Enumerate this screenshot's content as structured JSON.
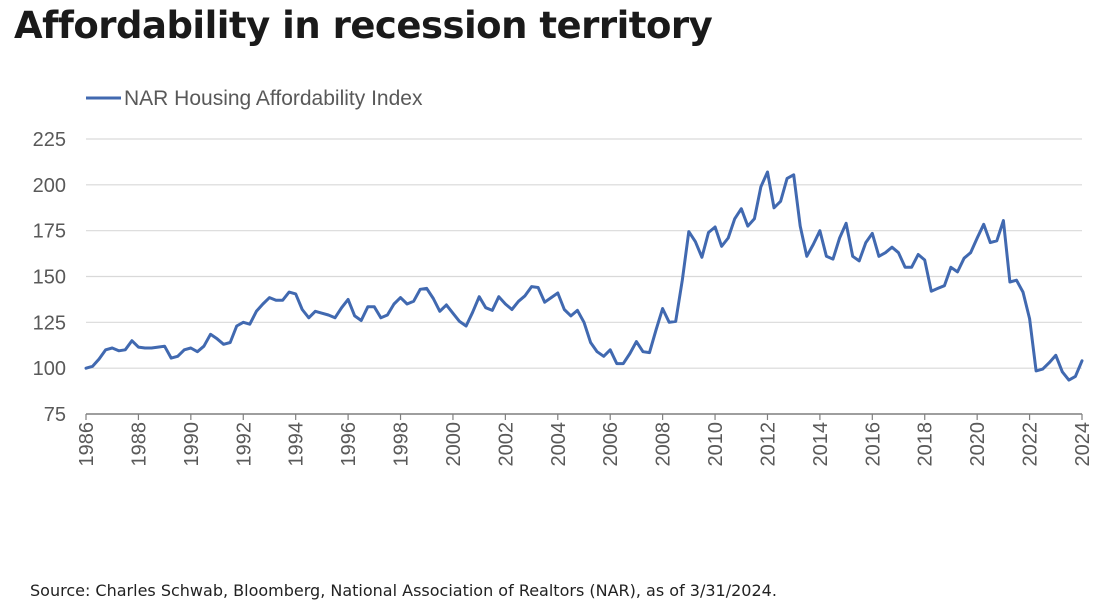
{
  "page": {
    "title": "Affordability in recession territory",
    "source": "Source: Charles Schwab, Bloomberg, National Association of Realtors (NAR), as of 3/31/2024."
  },
  "colors": {
    "series": "#4169b0",
    "grid": "#d9d9d9",
    "axis": "#7f7f7f",
    "text": "#595959"
  },
  "chart_data": {
    "type": "line",
    "title": "Affordability in recession territory",
    "legend": {
      "position": "top-left",
      "entries": [
        "NAR Housing Affordability Index"
      ]
    },
    "xlim": [
      1986,
      2024
    ],
    "ylim": [
      75,
      225
    ],
    "x_ticks": [
      1986,
      1988,
      1990,
      1992,
      1994,
      1996,
      1998,
      2000,
      2002,
      2004,
      2006,
      2008,
      2010,
      2012,
      2014,
      2016,
      2018,
      2020,
      2022,
      2024
    ],
    "y_ticks": [
      75,
      100,
      125,
      150,
      175,
      200,
      225
    ],
    "grid": {
      "horizontal": true,
      "vertical": false
    },
    "series": [
      {
        "name": "NAR Housing Affordability Index",
        "color": "#4169b0",
        "points": [
          [
            1986.0,
            100
          ],
          [
            1986.25,
            101
          ],
          [
            1986.5,
            105
          ],
          [
            1986.75,
            110
          ],
          [
            1987.0,
            111
          ],
          [
            1987.25,
            109.5
          ],
          [
            1987.5,
            110
          ],
          [
            1987.75,
            115
          ],
          [
            1988.0,
            111.5
          ],
          [
            1988.25,
            111
          ],
          [
            1988.5,
            111
          ],
          [
            1988.75,
            111.5
          ],
          [
            1989.0,
            112
          ],
          [
            1989.25,
            105.5
          ],
          [
            1989.5,
            106.5
          ],
          [
            1989.75,
            110
          ],
          [
            1990.0,
            111
          ],
          [
            1990.25,
            109
          ],
          [
            1990.5,
            112
          ],
          [
            1990.75,
            118.5
          ],
          [
            1991.0,
            116
          ],
          [
            1991.25,
            113
          ],
          [
            1991.5,
            114
          ],
          [
            1991.75,
            123
          ],
          [
            1992.0,
            125
          ],
          [
            1992.25,
            124
          ],
          [
            1992.5,
            131
          ],
          [
            1992.75,
            135
          ],
          [
            1993.0,
            138.5
          ],
          [
            1993.25,
            137
          ],
          [
            1993.5,
            137
          ],
          [
            1993.75,
            141.5
          ],
          [
            1994.0,
            140.5
          ],
          [
            1994.25,
            132
          ],
          [
            1994.5,
            127.5
          ],
          [
            1994.75,
            131
          ],
          [
            1995.0,
            130
          ],
          [
            1995.25,
            129
          ],
          [
            1995.5,
            127.5
          ],
          [
            1995.75,
            133
          ],
          [
            1996.0,
            137.5
          ],
          [
            1996.25,
            128.5
          ],
          [
            1996.5,
            126
          ],
          [
            1996.75,
            133.5
          ],
          [
            1997.0,
            133.5
          ],
          [
            1997.25,
            127.5
          ],
          [
            1997.5,
            129
          ],
          [
            1997.75,
            135
          ],
          [
            1998.0,
            138.5
          ],
          [
            1998.25,
            135
          ],
          [
            1998.5,
            136.5
          ],
          [
            1998.75,
            143
          ],
          [
            1999.0,
            143.5
          ],
          [
            1999.25,
            138
          ],
          [
            1999.5,
            131
          ],
          [
            1999.75,
            134.5
          ],
          [
            2000.0,
            130
          ],
          [
            2000.25,
            125.5
          ],
          [
            2000.5,
            123
          ],
          [
            2000.75,
            130.5
          ],
          [
            2001.0,
            139
          ],
          [
            2001.25,
            133
          ],
          [
            2001.5,
            131.5
          ],
          [
            2001.75,
            139
          ],
          [
            2002.0,
            135
          ],
          [
            2002.25,
            132
          ],
          [
            2002.5,
            136.5
          ],
          [
            2002.75,
            139.5
          ],
          [
            2003.0,
            144.5
          ],
          [
            2003.25,
            144
          ],
          [
            2003.5,
            136
          ],
          [
            2003.75,
            138.5
          ],
          [
            2004.0,
            141
          ],
          [
            2004.25,
            132
          ],
          [
            2004.5,
            128.5
          ],
          [
            2004.75,
            131.5
          ],
          [
            2005.0,
            125
          ],
          [
            2005.25,
            114
          ],
          [
            2005.5,
            109
          ],
          [
            2005.75,
            106.5
          ],
          [
            2006.0,
            110
          ],
          [
            2006.25,
            102.5
          ],
          [
            2006.5,
            102.5
          ],
          [
            2006.75,
            108
          ],
          [
            2007.0,
            114.5
          ],
          [
            2007.25,
            109
          ],
          [
            2007.5,
            108.5
          ],
          [
            2007.75,
            121
          ],
          [
            2008.0,
            132.5
          ],
          [
            2008.25,
            125
          ],
          [
            2008.5,
            125.5
          ],
          [
            2008.75,
            148
          ],
          [
            2009.0,
            174.5
          ],
          [
            2009.25,
            169
          ],
          [
            2009.5,
            160.5
          ],
          [
            2009.75,
            174
          ],
          [
            2010.0,
            177
          ],
          [
            2010.25,
            166.5
          ],
          [
            2010.5,
            171
          ],
          [
            2010.75,
            181.5
          ],
          [
            2011.0,
            187
          ],
          [
            2011.25,
            177.5
          ],
          [
            2011.5,
            181.5
          ],
          [
            2011.75,
            199
          ],
          [
            2012.0,
            207
          ],
          [
            2012.25,
            187.5
          ],
          [
            2012.5,
            191
          ],
          [
            2012.75,
            203.5
          ],
          [
            2013.0,
            205.5
          ],
          [
            2013.25,
            177.5
          ],
          [
            2013.5,
            161
          ],
          [
            2013.75,
            167.5
          ],
          [
            2014.0,
            175
          ],
          [
            2014.25,
            161
          ],
          [
            2014.5,
            159.5
          ],
          [
            2014.75,
            171
          ],
          [
            2015.0,
            179
          ],
          [
            2015.25,
            161
          ],
          [
            2015.5,
            158.5
          ],
          [
            2015.75,
            168.5
          ],
          [
            2016.0,
            173.5
          ],
          [
            2016.25,
            161
          ],
          [
            2016.5,
            163
          ],
          [
            2016.75,
            166
          ],
          [
            2017.0,
            163
          ],
          [
            2017.25,
            155
          ],
          [
            2017.5,
            155
          ],
          [
            2017.75,
            162
          ],
          [
            2018.0,
            159
          ],
          [
            2018.25,
            142
          ],
          [
            2018.5,
            143.5
          ],
          [
            2018.75,
            145
          ],
          [
            2019.0,
            155
          ],
          [
            2019.25,
            152.5
          ],
          [
            2019.5,
            160
          ],
          [
            2019.75,
            163
          ],
          [
            2020.0,
            171
          ],
          [
            2020.25,
            178.5
          ],
          [
            2020.5,
            168.5
          ],
          [
            2020.75,
            169.5
          ],
          [
            2021.0,
            180.5
          ],
          [
            2021.25,
            147
          ],
          [
            2021.5,
            148
          ],
          [
            2021.75,
            141.5
          ],
          [
            2022.0,
            127
          ],
          [
            2022.25,
            98.5
          ],
          [
            2022.5,
            99.5
          ],
          [
            2022.75,
            103
          ],
          [
            2023.0,
            107
          ],
          [
            2023.25,
            98
          ],
          [
            2023.5,
            93.5
          ],
          [
            2023.75,
            95.5
          ],
          [
            2024.0,
            104
          ]
        ]
      }
    ]
  }
}
